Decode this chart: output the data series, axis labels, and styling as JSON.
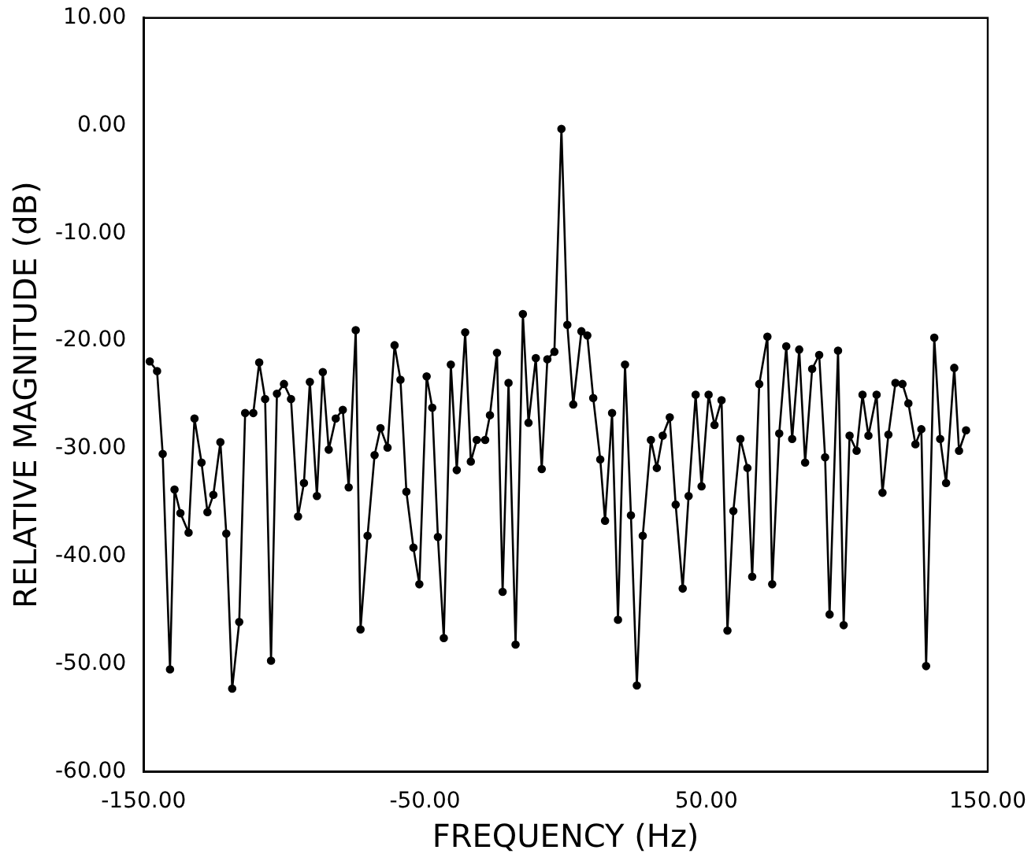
{
  "chart_data": {
    "type": "line",
    "xlabel": "FREQUENCY (Hz)",
    "ylabel": "RELATIVE MAGNITUDE (dB)",
    "color": "#000000",
    "marker": "circle",
    "line_style": "solid",
    "x": [
      -147.8,
      -145.2,
      -143.2,
      -140.6,
      -139.0,
      -136.9,
      -134.0,
      -131.9,
      -129.4,
      -127.3,
      -125.2,
      -122.7,
      -120.6,
      -118.5,
      -116.0,
      -113.9,
      -111.0,
      -108.9,
      -106.8,
      -104.7,
      -102.6,
      -100.1,
      -97.6,
      -95.1,
      -93.0,
      -90.9,
      -88.4,
      -86.3,
      -84.2,
      -81.7,
      -79.2,
      -77.1,
      -74.6,
      -72.9,
      -70.4,
      -67.9,
      -65.8,
      -63.3,
      -60.8,
      -58.7,
      -56.6,
      -54.1,
      -52.0,
      -49.4,
      -47.4,
      -45.4,
      -43.3,
      -40.8,
      -38.7,
      -35.7,
      -33.7,
      -31.6,
      -28.6,
      -26.9,
      -24.4,
      -22.4,
      -20.3,
      -17.8,
      -15.2,
      -13.2,
      -10.6,
      -8.5,
      -6.5,
      -4.0,
      -1.5,
      0.6,
      2.7,
      5.6,
      7.7,
      9.8,
      12.3,
      14.0,
      16.5,
      18.6,
      21.1,
      23.2,
      25.3,
      27.4,
      30.3,
      32.4,
      34.5,
      37.0,
      39.1,
      41.6,
      43.7,
      46.2,
      48.3,
      50.8,
      52.9,
      55.4,
      57.5,
      59.6,
      62.1,
      64.6,
      66.3,
      68.8,
      71.7,
      73.4,
      75.9,
      78.4,
      80.5,
      83.0,
      85.1,
      87.6,
      90.1,
      92.2,
      93.8,
      96.8,
      98.8,
      100.9,
      103.4,
      105.5,
      107.6,
      110.5,
      112.6,
      114.7,
      117.2,
      119.7,
      121.8,
      124.3,
      126.4,
      128.1,
      131.0,
      133.1,
      135.2,
      138.1,
      139.8,
      142.3
    ],
    "values": [
      -21.9,
      -22.8,
      -30.5,
      -50.5,
      -33.8,
      -36.0,
      -37.8,
      -27.2,
      -31.3,
      -35.9,
      -34.3,
      -29.4,
      -37.9,
      -52.3,
      -46.1,
      -26.7,
      -26.7,
      -22.0,
      -25.4,
      -49.7,
      -24.9,
      -24.0,
      -25.4,
      -36.3,
      -33.2,
      -23.8,
      -34.4,
      -22.9,
      -30.1,
      -27.2,
      -26.4,
      -33.6,
      -19.0,
      -46.8,
      -38.1,
      -30.6,
      -28.1,
      -29.9,
      -20.4,
      -23.6,
      -34.0,
      -39.2,
      -42.6,
      -23.3,
      -26.2,
      -38.2,
      -47.6,
      -22.2,
      -32.0,
      -19.2,
      -31.2,
      -29.2,
      -29.2,
      -26.9,
      -21.1,
      -43.3,
      -23.9,
      -48.2,
      -17.5,
      -27.6,
      -21.6,
      -31.9,
      -21.7,
      -21.0,
      -0.3,
      -18.5,
      -25.9,
      -19.1,
      -19.5,
      -25.3,
      -31.0,
      -36.7,
      -26.7,
      -45.9,
      -22.2,
      -36.2,
      -52.0,
      -38.1,
      -29.2,
      -31.8,
      -28.8,
      -27.1,
      -35.2,
      -43.0,
      -34.4,
      -25.0,
      -33.5,
      -25.0,
      -27.8,
      -25.5,
      -46.9,
      -35.8,
      -29.1,
      -31.8,
      -41.9,
      -24.0,
      -19.6,
      -42.6,
      -28.6,
      -20.5,
      -29.1,
      -20.8,
      -31.3,
      -22.6,
      -21.3,
      -30.8,
      -45.4,
      -20.9,
      -46.4,
      -28.8,
      -30.2,
      -25.0,
      -28.8,
      -25.0,
      -34.1,
      -28.7,
      -23.9,
      -24.0,
      -25.8,
      -29.6,
      -28.2,
      -50.2,
      -19.7,
      -29.1,
      -33.2,
      -22.5,
      -30.2,
      -28.3
    ],
    "xlim": [
      -150,
      150
    ],
    "xticks": [
      {
        "value": -150,
        "label": "-150.00"
      },
      {
        "value": -50,
        "label": "-50.00"
      },
      {
        "value": 50,
        "label": "50.00"
      },
      {
        "value": 150,
        "label": "150.00"
      }
    ],
    "ylim": [
      -60,
      10
    ],
    "yticks": [
      {
        "value": -60,
        "label": "-60.00"
      },
      {
        "value": -50,
        "label": "-50.00"
      },
      {
        "value": -40,
        "label": "-40.00"
      },
      {
        "value": -30,
        "label": "-30.00"
      },
      {
        "value": -20,
        "label": "-20.00"
      },
      {
        "value": -10,
        "label": "-10.00"
      },
      {
        "value": 0,
        "label": "0.00"
      },
      {
        "value": 10,
        "label": "10.00"
      }
    ]
  }
}
